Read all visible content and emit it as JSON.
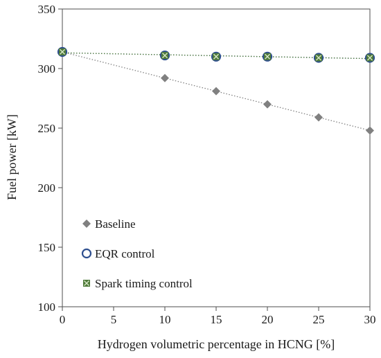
{
  "chart_data": {
    "type": "scatter",
    "xlabel": "Hydrogen volumetric percentage in HCNG [%]",
    "ylabel": "Fuel power [kW]",
    "xlim": [
      0,
      30
    ],
    "ylim": [
      100,
      350
    ],
    "xticks": [
      0,
      5,
      10,
      15,
      20,
      25,
      30
    ],
    "yticks": [
      100,
      150,
      200,
      250,
      300,
      350
    ],
    "grid": false,
    "legend_position": "lower-left",
    "series": [
      {
        "name": "Baseline",
        "marker": "diamond",
        "color": "#808080",
        "trendline_color": "#808080",
        "x": [
          0,
          10,
          15,
          20,
          25,
          30
        ],
        "y": [
          314,
          292,
          281,
          270,
          259,
          248
        ]
      },
      {
        "name": "EQR control",
        "marker": "open-circle",
        "color": "#2e4f8f",
        "trendline_color": "#2e4f8f",
        "x": [
          0,
          10,
          15,
          20,
          25,
          30
        ],
        "y": [
          314,
          311,
          310,
          310,
          309,
          309
        ]
      },
      {
        "name": "Spark timing control",
        "marker": "x-square",
        "color": "#4f7a3a",
        "trendline_color": "#4f7a3a",
        "x": [
          0,
          10,
          15,
          20,
          25,
          30
        ],
        "y": [
          314,
          311,
          310,
          310,
          309,
          309
        ]
      }
    ]
  }
}
